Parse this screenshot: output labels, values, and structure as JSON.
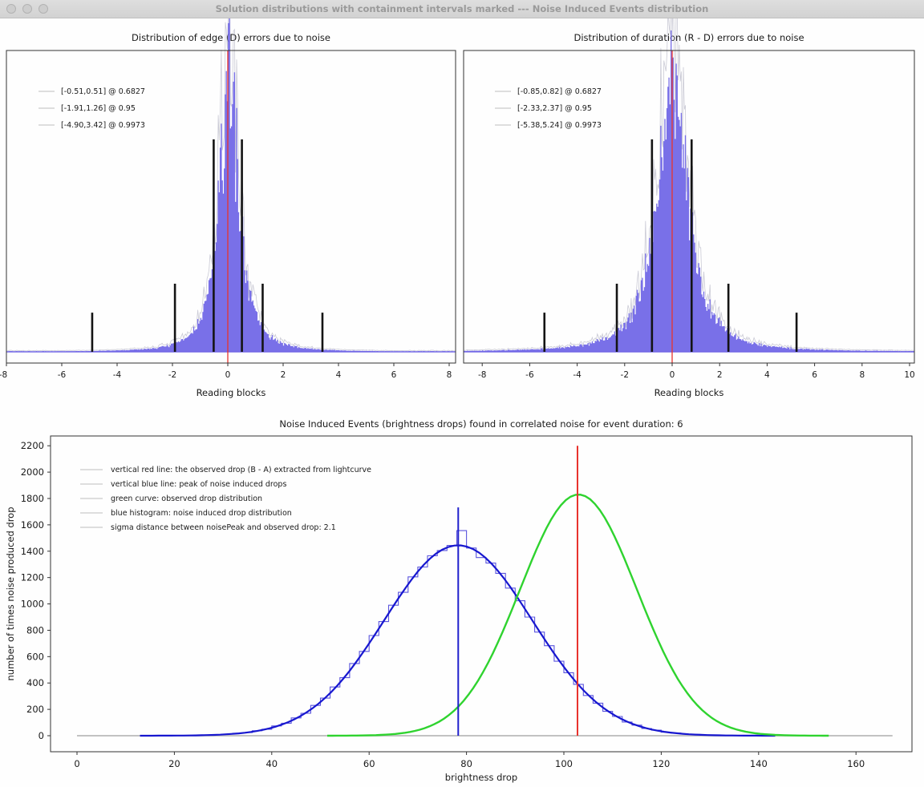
{
  "window": {
    "title": "Solution distributions with containment intervals marked --- Noise Induced Events distribution",
    "traffic_lights": [
      "close",
      "minimize",
      "zoom"
    ]
  },
  "colors": {
    "bar": "#6f65e6",
    "bar_edge_gray": "#a0a0b4",
    "red_line": "#e8322d",
    "black_line": "#141414",
    "blue_curve": "#1717cf",
    "blue_hist": "#5b55dd",
    "blue_vline": "#2020cc",
    "green_curve": "#2fd32f",
    "gray_hline": "#c2c2c2",
    "legend_marker": "#d4d4d4",
    "spine": "#333333",
    "text": "#1a1a1a"
  },
  "chart_data": [
    {
      "type": "bar",
      "subtype": "noise-error-histogram",
      "title": "Distribution of edge (D) errors due to noise",
      "xlabel": "Reading blocks",
      "x_ticks": [
        -8,
        -6,
        -4,
        -2,
        0,
        2,
        4,
        6,
        8
      ],
      "xlim": [
        -8.0,
        8.23
      ],
      "grid": false,
      "legend_position": "upper left",
      "legend": [
        "[-0.51,0.51] @ 0.6827",
        "[-1.91,1.26] @ 0.95",
        "[-4.90,3.42] @ 0.9973"
      ],
      "red_vline_x": 0,
      "intervals": [
        {
          "low": -0.51,
          "high": 0.51,
          "prob": 0.6827,
          "height_frac": 0.705
        },
        {
          "low": -1.91,
          "high": 1.26,
          "prob": 0.95,
          "height_frac": 0.226
        },
        {
          "low": -4.9,
          "high": 3.42,
          "prob": 0.9973,
          "height_frac": 0.13
        }
      ],
      "dist": {
        "center": 0.05,
        "gamma": 0.5,
        "power": 1.25,
        "peak_frac": 0.89,
        "n_bins": 440,
        "seed": 7
      }
    },
    {
      "type": "bar",
      "subtype": "noise-error-histogram",
      "title": "Distribution of duration (R - D) errors due to noise",
      "xlabel": "Reading blocks",
      "x_ticks": [
        -8,
        -6,
        -4,
        -2,
        0,
        2,
        4,
        6,
        8,
        10
      ],
      "xlim": [
        -8.78,
        10.2
      ],
      "grid": false,
      "legend_position": "upper left",
      "legend": [
        "[-0.85,0.82] @ 0.6827",
        "[-2.33,2.37] @ 0.95",
        "[-5.38,5.24] @ 0.9973"
      ],
      "red_vline_x": 0,
      "intervals": [
        {
          "low": -0.85,
          "high": 0.82,
          "prob": 0.6827,
          "height_frac": 0.705
        },
        {
          "low": -2.33,
          "high": 2.37,
          "prob": 0.95,
          "height_frac": 0.226
        },
        {
          "low": -5.38,
          "high": 5.24,
          "prob": 0.9973,
          "height_frac": 0.13
        }
      ],
      "dist": {
        "center": 0.0,
        "gamma": 0.85,
        "power": 1.2,
        "peak_frac": 0.88,
        "n_bins": 440,
        "seed": 13
      }
    },
    {
      "type": "line",
      "subtype": "noise-induced-events",
      "title": "Noise Induced Events (brightness drops) found in correlated noise for event duration: 6",
      "xlabel": "brightness drop",
      "ylabel": "number of times noise produced drop",
      "x_ticks": [
        0,
        20,
        40,
        60,
        80,
        100,
        120,
        140,
        160
      ],
      "y_ticks": [
        0,
        200,
        400,
        600,
        800,
        1000,
        1200,
        1400,
        1600,
        1800,
        2000,
        2200
      ],
      "xlim": [
        -5.5,
        172
      ],
      "ylim": [
        -115,
        2315
      ],
      "grid": false,
      "legend_position": "upper left",
      "legend": [
        "vertical red line: the observed drop (B - A) extracted from lightcurve",
        "vertical blue line: peak of noise induced drops",
        "green curve: observed drop distribution",
        "blue histogram: noise induced drop distribution",
        "sigma distance between noisePeak and observed drop: 2.1"
      ],
      "sigma_distance": 2.1,
      "red_vline": {
        "x": 102.8,
        "y0": 0,
        "y1": 2200
      },
      "blue_vline": {
        "x": 78.3,
        "y0": 0,
        "y1": 1732
      },
      "green_curve": {
        "shape": "gaussian",
        "amp": 1830,
        "mu": 103.0,
        "sigma": 12.0
      },
      "blue_curve": {
        "shape": "gaussian",
        "amp": 1445,
        "mu": 78.3,
        "sigma": 15.2
      },
      "gray_hline": {
        "y": 0,
        "x0": 0,
        "x1": 167.5
      },
      "histogram": {
        "bin_start": 24,
        "bin_width": 2,
        "values": [
          3,
          6,
          7,
          12,
          19,
          24,
          38,
          49,
          74,
          95,
          135,
          170,
          230,
          285,
          370,
          440,
          548,
          640,
          760,
          866,
          990,
          1088,
          1205,
          1280,
          1365,
          1405,
          1444,
          1556,
          1424,
          1352,
          1310,
          1232,
          1120,
          1024,
          900,
          786,
          683,
          565,
          478,
          390,
          305,
          247,
          185,
          146,
          104,
          80,
          55,
          42,
          27,
          20,
          12,
          10,
          5,
          4,
          2,
          1
        ]
      }
    }
  ]
}
